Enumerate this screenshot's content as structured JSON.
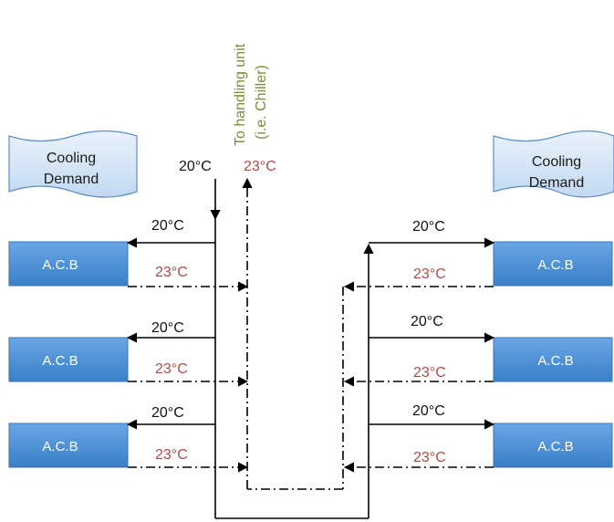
{
  "banners": {
    "left": [
      "Cooling",
      "Demand"
    ],
    "right": [
      "Cooling",
      "Demand"
    ]
  },
  "units": {
    "label": "A.C.B"
  },
  "temperatures": {
    "supply": "20°C",
    "return": "23°C"
  },
  "destination": {
    "line1": "To handling unit",
    "line2": "(i.e. Chiller)"
  },
  "colors": {
    "supply_text": "#111111",
    "return_text": "#b04a45",
    "destination_text": "#7f8c3a",
    "unit_fill": "#4a8fd6",
    "banner_fill": "#cfe1f5"
  }
}
